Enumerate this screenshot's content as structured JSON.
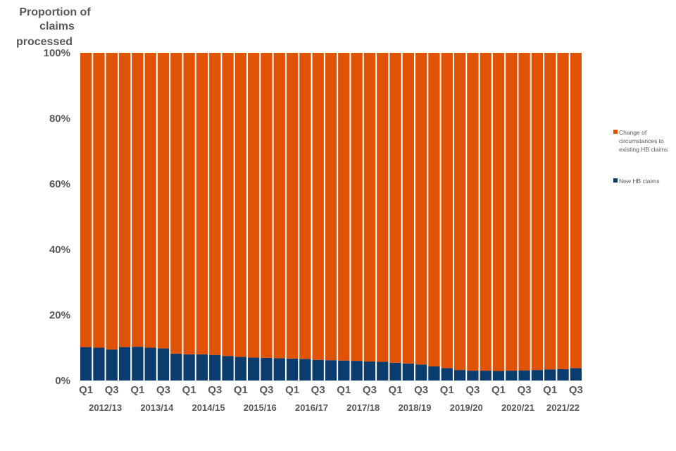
{
  "chart_data": {
    "type": "bar",
    "stacked": true,
    "percent": true,
    "ylabel_lines": [
      "Proportion of",
      "claims",
      "processed"
    ],
    "ylim": [
      0,
      100
    ],
    "yticks": [
      "0%",
      "20%",
      "40%",
      "60%",
      "80%",
      "100%"
    ],
    "quarter_labels": [
      "Q1",
      "Q3",
      "Q1",
      "Q3",
      "Q1",
      "Q3",
      "Q1",
      "Q3",
      "Q1",
      "Q3",
      "Q1",
      "Q3",
      "Q1",
      "Q3",
      "Q1",
      "Q3",
      "Q1",
      "Q3",
      "Q1",
      "Q3"
    ],
    "years": [
      "2012/13",
      "2013/14",
      "2014/15",
      "2015/16",
      "2016/17",
      "2017/18",
      "2018/19",
      "2019/20",
      "2020/21",
      "2021/22"
    ],
    "grid": false,
    "legend_position": "right",
    "series": [
      {
        "name": "New HB claims",
        "color": "#0b3c6e",
        "values": [
          10.2,
          10.0,
          9.5,
          10.2,
          10.3,
          10.0,
          9.8,
          8.2,
          8.0,
          8.0,
          7.8,
          7.5,
          7.2,
          7.0,
          6.9,
          6.8,
          6.7,
          6.6,
          6.3,
          6.2,
          6.1,
          6.0,
          5.8,
          5.7,
          5.4,
          5.2,
          4.9,
          4.3,
          3.8,
          3.2,
          3.0,
          3.0,
          2.9,
          3.0,
          3.1,
          3.2,
          3.4,
          3.5,
          3.8
        ]
      },
      {
        "name_lines": [
          "Change of",
          "circumstances to",
          "existing HB claims"
        ],
        "color": "#e05206",
        "values": [
          89.8,
          90.0,
          90.5,
          89.8,
          89.7,
          90.0,
          90.2,
          91.8,
          92.0,
          92.0,
          92.2,
          92.5,
          92.8,
          93.0,
          93.1,
          93.2,
          93.3,
          93.4,
          93.7,
          93.8,
          93.9,
          94.0,
          94.2,
          94.3,
          94.6,
          94.8,
          95.1,
          95.7,
          96.2,
          96.8,
          97.0,
          97.0,
          97.1,
          97.0,
          96.9,
          96.8,
          96.6,
          96.5,
          96.2
        ]
      }
    ]
  }
}
